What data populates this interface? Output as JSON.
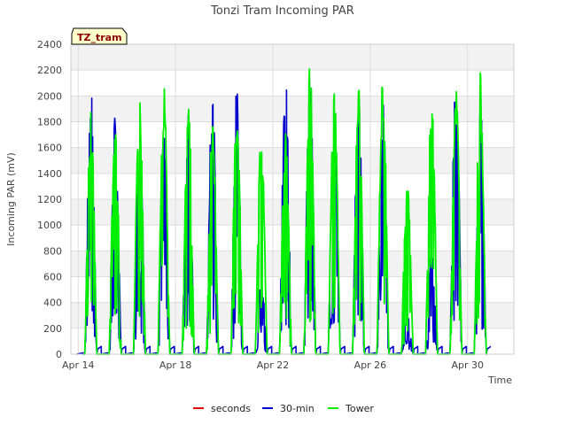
{
  "chart_data": {
    "type": "line",
    "title": "Tonzi Tram Incoming PAR",
    "xlabel": "Time",
    "ylabel": "Incoming PAR (mV)",
    "badge": "TZ_tram",
    "ylim": [
      0,
      2400
    ],
    "yticks": [
      0,
      200,
      400,
      600,
      800,
      1000,
      1200,
      1400,
      1600,
      1800,
      2000,
      2200,
      2400
    ],
    "xlim": [
      13.7,
      31.9
    ],
    "xticks": [
      {
        "day": 14,
        "label": "Apr 14"
      },
      {
        "day": 18,
        "label": "Apr 18"
      },
      {
        "day": 22,
        "label": "Apr 22"
      },
      {
        "day": 26,
        "label": "Apr 26"
      },
      {
        "day": 30,
        "label": "Apr 30"
      }
    ],
    "grid": true,
    "legend_position": "bottom",
    "series": [
      {
        "name": "seconds",
        "color": "#e00000",
        "values": []
      },
      {
        "name": "30-min",
        "color": "#0000cc",
        "daily_peaks": [
          {
            "day": 14,
            "peak": 2190
          },
          {
            "day": 15,
            "peak": 1870
          },
          {
            "day": 16,
            "peak": 1850
          },
          {
            "day": 17,
            "peak": 1800
          },
          {
            "day": 18,
            "peak": 1880
          },
          {
            "day": 19,
            "peak": 2100
          },
          {
            "day": 20,
            "peak": 2090
          },
          {
            "day": 21,
            "peak": 600
          },
          {
            "day": 22,
            "peak": 2280
          },
          {
            "day": 23,
            "peak": 2170
          },
          {
            "day": 24,
            "peak": 1900
          },
          {
            "day": 25,
            "peak": 2080
          },
          {
            "day": 26,
            "peak": 2020
          },
          {
            "day": 27,
            "peak": 300
          },
          {
            "day": 28,
            "peak": 780
          },
          {
            "day": 29,
            "peak": 2180
          },
          {
            "day": 30,
            "peak": 2030
          }
        ]
      },
      {
        "name": "Tower",
        "color": "#00ee00",
        "daily_peaks": [
          {
            "day": 14,
            "peak": 1890
          },
          {
            "day": 15,
            "peak": 1850
          },
          {
            "day": 16,
            "peak": 2050
          },
          {
            "day": 17,
            "peak": 2080
          },
          {
            "day": 18,
            "peak": 2060
          },
          {
            "day": 19,
            "peak": 1860
          },
          {
            "day": 20,
            "peak": 1950
          },
          {
            "day": 21,
            "peak": 1710
          },
          {
            "day": 22,
            "peak": 1800
          },
          {
            "day": 23,
            "peak": 2260
          },
          {
            "day": 24,
            "peak": 2100
          },
          {
            "day": 25,
            "peak": 2110
          },
          {
            "day": 26,
            "peak": 2170
          },
          {
            "day": 27,
            "peak": 1360
          },
          {
            "day": 28,
            "peak": 2110
          },
          {
            "day": 29,
            "peak": 2120
          },
          {
            "day": 30,
            "peak": 2180
          }
        ]
      }
    ]
  }
}
